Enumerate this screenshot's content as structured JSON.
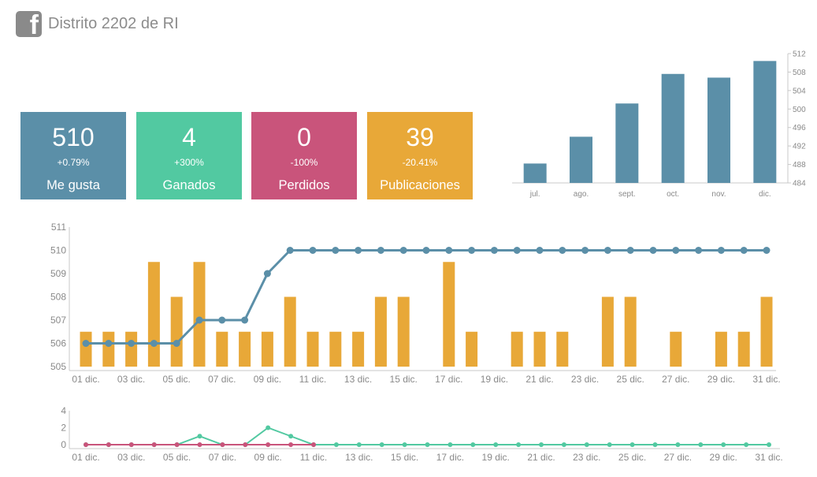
{
  "header": {
    "title": "Distrito 2202 de RI",
    "icon": "facebook-icon"
  },
  "tiles": [
    {
      "value": "510",
      "change": "+0.79%",
      "label": "Me gusta",
      "color": "#5b8fa8"
    },
    {
      "value": "4",
      "change": "+300%",
      "label": "Ganados",
      "color": "#52c9a1"
    },
    {
      "value": "0",
      "change": "-100%",
      "label": "Perdidos",
      "color": "#c9547b"
    },
    {
      "value": "39",
      "change": "-20.41%",
      "label": "Publicaciones",
      "color": "#e8a838"
    }
  ],
  "chart_data": [
    {
      "type": "bar",
      "categories": [
        "jul.",
        "ago.",
        "sept.",
        "oct.",
        "nov.",
        "dic."
      ],
      "values": [
        488.2,
        494.0,
        501.2,
        507.6,
        506.8,
        510.4
      ],
      "ylim": [
        484,
        512
      ],
      "yticks": [
        484,
        488,
        492,
        496,
        500,
        504,
        508,
        512
      ],
      "axis_position": "right",
      "color": "#5b8fa8"
    },
    {
      "type": "bar+line",
      "x_labels": [
        "01 dic.",
        "03 dic.",
        "05 dic.",
        "07 dic.",
        "09 dic.",
        "11 dic.",
        "13 dic.",
        "15 dic.",
        "17 dic.",
        "19 dic.",
        "21 dic.",
        "23 dic.",
        "25 dic.",
        "27 dic.",
        "29 dic.",
        "31 dic."
      ],
      "ylim": [
        505,
        511
      ],
      "yticks": [
        505,
        506,
        507,
        508,
        509,
        510,
        511
      ],
      "series": [
        {
          "type": "bar",
          "color": "#e8a838",
          "values": [
            506.5,
            506.5,
            506.5,
            509.5,
            508,
            509.5,
            506.5,
            506.5,
            506.5,
            508,
            506.5,
            506.5,
            506.5,
            508,
            508,
            null,
            509.5,
            506.5,
            null,
            506.5,
            506.5,
            506.5,
            null,
            508,
            508,
            null,
            506.5,
            null,
            506.5,
            506.5,
            508
          ]
        },
        {
          "type": "line",
          "color": "#5b8fa8",
          "values": [
            506,
            506,
            506,
            506,
            506,
            507,
            507,
            507,
            509,
            510,
            510,
            510,
            510,
            510,
            510,
            510,
            510,
            510,
            510,
            510,
            510,
            510,
            510,
            510,
            510,
            510,
            510,
            510,
            510,
            510,
            510
          ]
        }
      ]
    },
    {
      "type": "line",
      "x_labels": [
        "01 dic.",
        "03 dic.",
        "05 dic.",
        "07 dic.",
        "09 dic.",
        "11 dic.",
        "13 dic.",
        "15 dic.",
        "17 dic.",
        "19 dic.",
        "21 dic.",
        "23 dic.",
        "25 dic.",
        "27 dic.",
        "29 dic.",
        "31 dic."
      ],
      "ylim": [
        0,
        4
      ],
      "yticks": [
        0,
        2,
        4
      ],
      "series": [
        {
          "color": "#52c9a1",
          "values": [
            0,
            0,
            0,
            0,
            0,
            1,
            0,
            0,
            2,
            1,
            0,
            0,
            0,
            0,
            0,
            0,
            0,
            0,
            0,
            0,
            0,
            0,
            0,
            0,
            0,
            0,
            0,
            0,
            0,
            0,
            0
          ]
        },
        {
          "color": "#c9547b",
          "values": [
            0,
            0,
            0,
            0,
            0,
            0,
            0,
            0,
            0,
            0,
            0,
            null,
            null,
            null,
            null,
            null,
            null,
            null,
            null,
            null,
            null,
            null,
            null,
            null,
            null,
            null,
            null,
            null,
            null,
            null,
            null
          ]
        }
      ]
    }
  ]
}
